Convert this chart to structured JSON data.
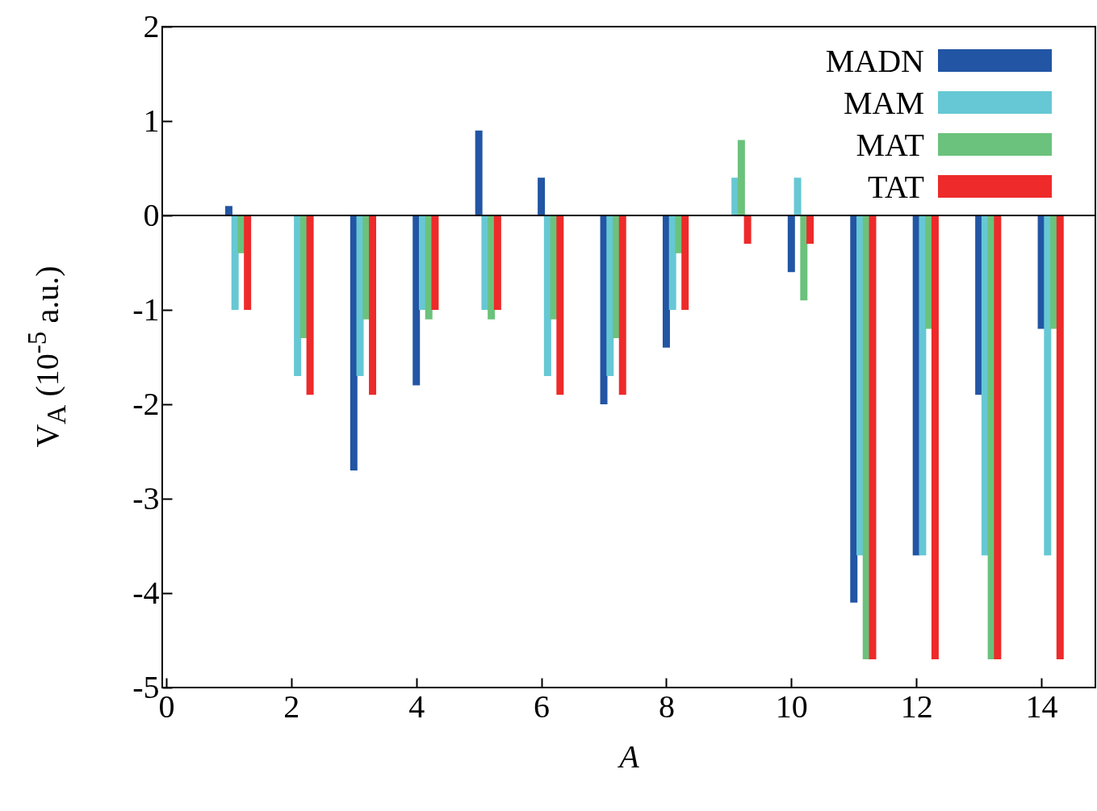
{
  "chart_data": {
    "type": "bar",
    "xlabel": "A",
    "ylabel": "V$_{A}$ (10$^{-5}$ a.u.)",
    "xlim": [
      0,
      14.8
    ],
    "xticks": [
      0,
      2,
      4,
      6,
      8,
      10,
      12,
      14
    ],
    "ylim": [
      -5,
      2
    ],
    "yticks": [
      -5,
      -4,
      -3,
      -2,
      -1,
      0,
      1,
      2
    ],
    "grid": false,
    "legend": "top right",
    "ref_lines": [
      {
        "axis": "y",
        "value": 0
      }
    ],
    "series": [
      {
        "name": "MADN",
        "color": "#2255a4",
        "x": [
          1,
          2,
          3,
          4,
          5,
          6,
          7,
          8,
          9,
          10,
          11,
          12,
          13,
          14
        ],
        "values": [
          0.1,
          0,
          -2.7,
          -1.8,
          0.9,
          0.4,
          -2,
          -1.4,
          0,
          -0.6,
          -4.1,
          -3.6,
          -1.9,
          -1.2
        ]
      },
      {
        "name": "MAM",
        "color": "#66c8d4",
        "x": [
          1.1,
          2.1,
          3.1,
          4.1,
          5.1,
          6.1,
          7.1,
          8.1,
          9.1,
          10.1,
          11.1,
          12.1,
          13.1,
          14.1
        ],
        "values": [
          -1,
          -1.7,
          -1.7,
          -1,
          -1,
          -1.7,
          -1.7,
          -1,
          0.4,
          0.4,
          -3.6,
          -3.6,
          -3.6,
          -3.6
        ]
      },
      {
        "name": "MAT",
        "color": "#6bc27c",
        "x": [
          1.2,
          2.2,
          3.2,
          4.2,
          5.2,
          6.2,
          7.2,
          8.2,
          9.2,
          10.2,
          11.2,
          12.2,
          13.2,
          14.2
        ],
        "values": [
          -0.4,
          -1.3,
          -1.1,
          -1.1,
          -1.1,
          -1.1,
          -1.3,
          -0.4,
          0.8,
          -0.9,
          -4.7,
          -1.2,
          -4.7,
          -1.2
        ]
      },
      {
        "name": "TAT",
        "color": "#ee2a2a",
        "x": [
          1.3,
          2.3,
          3.3,
          4.3,
          5.3,
          6.3,
          7.3,
          8.3,
          9.3,
          10.3,
          11.3,
          12.3,
          13.3,
          14.3
        ],
        "values": [
          -1,
          -1.9,
          -1.9,
          -1,
          -1,
          -1.9,
          -1.9,
          -1,
          -0.3,
          -0.3,
          -4.7,
          -4.7,
          -4.7,
          -4.7
        ]
      }
    ]
  }
}
